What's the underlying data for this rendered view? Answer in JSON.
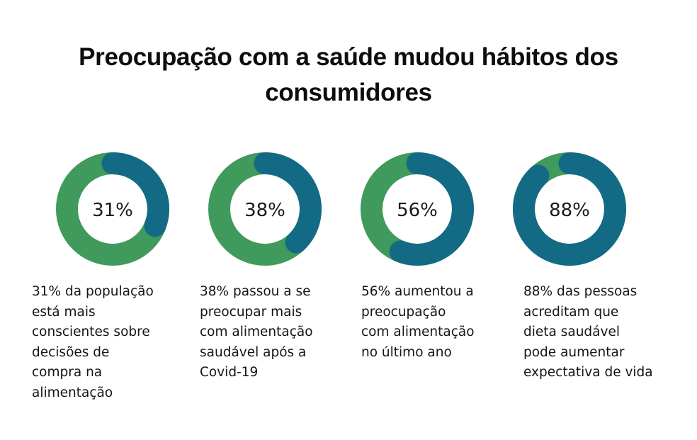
{
  "title_lines": [
    "Preocupação com a saúde mudou hábitos dos",
    "consumidores"
  ],
  "colors": {
    "filled": "#136a84",
    "remaining": "#3f9a5b"
  },
  "chart_data": {
    "type": "pie",
    "title": "Preocupação com a saúde mudou hábitos dos consumidores",
    "items": [
      {
        "value": 31,
        "label": "31%",
        "description_lines": [
          "31% da população",
          "está mais",
          "conscientes sobre",
          "decisões de",
          "compra na",
          "alimentação"
        ]
      },
      {
        "value": 38,
        "label": "38%",
        "description_lines": [
          "38% passou a se",
          "preocupar mais",
          "com alimentação",
          "saudável após a",
          "Covid-19"
        ]
      },
      {
        "value": 56,
        "label": "56%",
        "description_lines": [
          "56% aumentou a",
          "preocupação",
          "com alimentação",
          "no último ano"
        ]
      },
      {
        "value": 88,
        "label": "88%",
        "description_lines": [
          "88% das pessoas",
          "acreditam que",
          "dieta saudável",
          "pode aumentar",
          "expectativa de vida"
        ]
      }
    ]
  }
}
